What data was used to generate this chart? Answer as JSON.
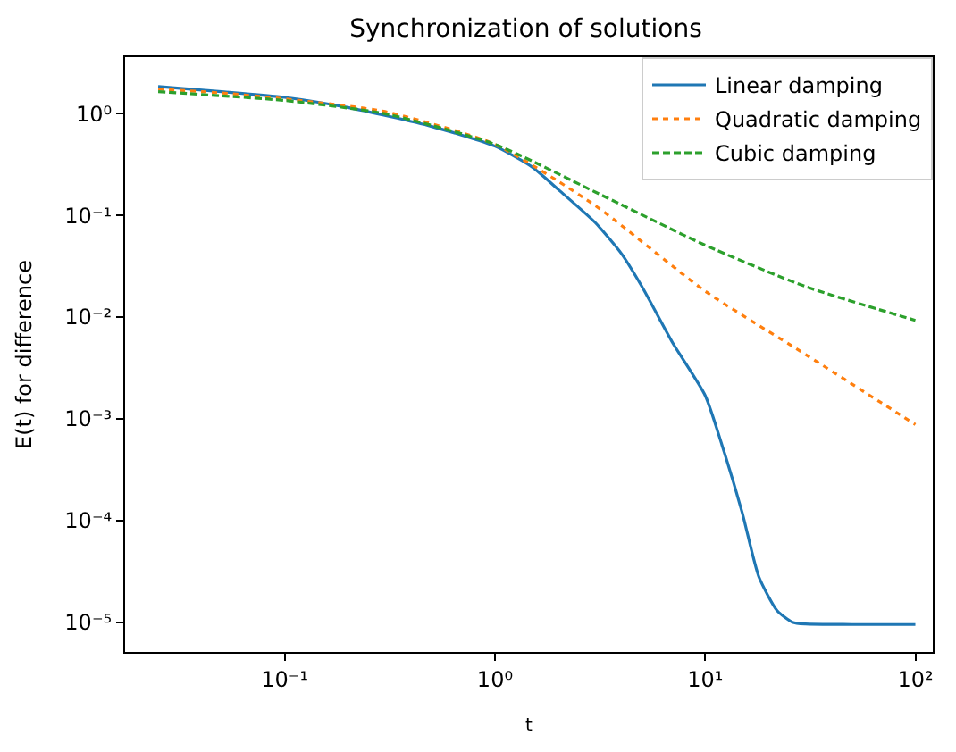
{
  "chart_data": {
    "type": "line",
    "title": "Synchronization of solutions",
    "xlabel": "t",
    "ylabel": "E(t) for difference",
    "log": "xy",
    "legend": "top right",
    "xlim": [
      0.0174,
      121
    ],
    "ylim": [
      5.1e-06,
      3.6
    ],
    "xticks": [
      {
        "value": 0.1,
        "label": "10⁻¹"
      },
      {
        "value": 1,
        "label": "10⁰"
      },
      {
        "value": 10,
        "label": "10¹"
      },
      {
        "value": 100,
        "label": "10²"
      }
    ],
    "yticks": [
      {
        "value": 1,
        "label": "10⁰"
      },
      {
        "value": 0.1,
        "label": "10⁻¹"
      },
      {
        "value": 0.01,
        "label": "10⁻²"
      },
      {
        "value": 0.001,
        "label": "10⁻³"
      },
      {
        "value": 0.0001,
        "label": "10⁻⁴"
      },
      {
        "value": 1e-05,
        "label": "10⁻⁵"
      }
    ],
    "series": [
      {
        "name": "Linear damping",
        "color": "#1f77b4",
        "line_style": "solid",
        "x": [
          0.025,
          0.05,
          0.1,
          0.2,
          0.5,
          1,
          1.5,
          2,
          3,
          4,
          5,
          7,
          10,
          12,
          15,
          18,
          22,
          26,
          30,
          50,
          100
        ],
        "values": [
          1.85,
          1.65,
          1.45,
          1.15,
          0.75,
          0.48,
          0.3,
          0.18,
          0.085,
          0.042,
          0.02,
          0.0056,
          0.0017,
          0.00056,
          0.00012,
          2.8e-05,
          1.3e-05,
          1e-05,
          9.6e-06,
          9.5e-06,
          9.5e-06
        ]
      },
      {
        "name": "Quadratic damping",
        "color": "#ff7f0e",
        "line_style": "dotted",
        "x": [
          0.025,
          0.05,
          0.1,
          0.3,
          1,
          3,
          10,
          30,
          100
        ],
        "values": [
          1.75,
          1.6,
          1.4,
          1.05,
          0.5,
          0.125,
          0.018,
          0.0043,
          0.00088
        ]
      },
      {
        "name": "Cubic damping",
        "color": "#2ca02c",
        "line_style": "dashed",
        "x": [
          0.025,
          0.05,
          0.1,
          0.3,
          1,
          3,
          10,
          30,
          100
        ],
        "values": [
          1.65,
          1.5,
          1.35,
          1.0,
          0.5,
          0.17,
          0.051,
          0.02,
          0.0093
        ]
      }
    ]
  }
}
